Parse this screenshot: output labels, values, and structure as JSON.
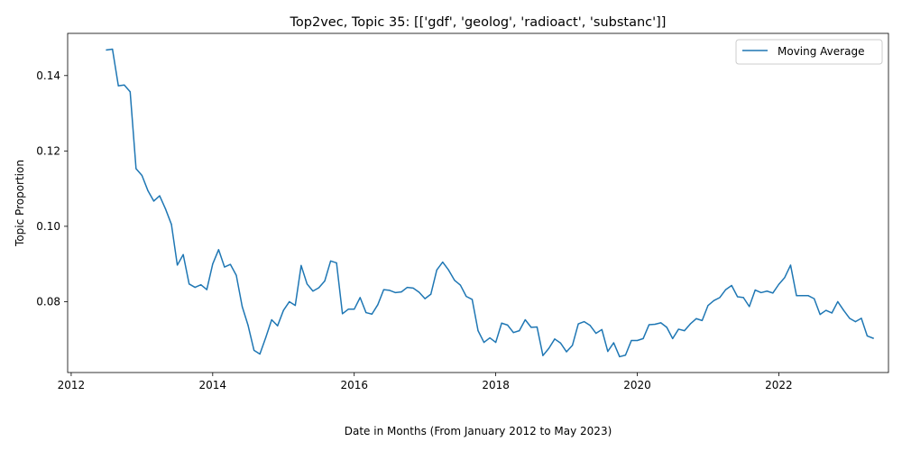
{
  "chart_data": {
    "type": "line",
    "title": "Top2vec, Topic 35: [['gdf', 'geolog', 'radioact', 'substanc']]",
    "xlabel": "Date in Months (From January 2012 to May 2023)",
    "ylabel": "Topic Proportion",
    "xlim": [
      2011.95,
      2023.55
    ],
    "ylim": [
      0.0612,
      0.1512
    ],
    "x_ticks": [
      2012,
      2014,
      2016,
      2018,
      2020,
      2022
    ],
    "y_ticks": [
      0.08,
      0.1,
      0.12,
      0.14
    ],
    "y_tick_labels": [
      "0.08",
      "0.10",
      "0.12",
      "0.14"
    ],
    "grid": false,
    "legend": {
      "position": "top-right",
      "entries": [
        "Moving Average"
      ]
    },
    "series": [
      {
        "name": "Moving Average",
        "color": "#1f77b4",
        "x_start": "2012-07",
        "x_step": "1 month",
        "values": [
          0.1468,
          0.147,
          0.1373,
          0.1375,
          0.1357,
          0.1153,
          0.1135,
          0.1095,
          0.1067,
          0.1081,
          0.1046,
          0.1005,
          0.0897,
          0.0925,
          0.0847,
          0.0838,
          0.0845,
          0.0832,
          0.09,
          0.0938,
          0.0892,
          0.0899,
          0.087,
          0.0787,
          0.0737,
          0.0671,
          0.0661,
          0.0705,
          0.0752,
          0.0736,
          0.0777,
          0.08,
          0.079,
          0.0896,
          0.0847,
          0.0828,
          0.0837,
          0.0855,
          0.0908,
          0.0903,
          0.0768,
          0.078,
          0.078,
          0.0811,
          0.0771,
          0.0767,
          0.0792,
          0.0832,
          0.083,
          0.0824,
          0.0826,
          0.0838,
          0.0836,
          0.0825,
          0.0808,
          0.082,
          0.0884,
          0.0905,
          0.0884,
          0.0857,
          0.0844,
          0.0814,
          0.0806,
          0.0723,
          0.0692,
          0.0704,
          0.0692,
          0.0743,
          0.0738,
          0.0718,
          0.0723,
          0.0752,
          0.0732,
          0.0733,
          0.0657,
          0.0676,
          0.0701,
          0.069,
          0.0667,
          0.0684,
          0.0741,
          0.0747,
          0.0737,
          0.0716,
          0.0726,
          0.0668,
          0.0691,
          0.0654,
          0.0658,
          0.0697,
          0.0697,
          0.0702,
          0.0739,
          0.074,
          0.0744,
          0.0732,
          0.0702,
          0.0727,
          0.0723,
          0.0741,
          0.0755,
          0.075,
          0.079,
          0.0803,
          0.0811,
          0.0832,
          0.0843,
          0.0813,
          0.0811,
          0.0787,
          0.0831,
          0.0824,
          0.0828,
          0.0823,
          0.0846,
          0.0864,
          0.0897,
          0.0816,
          0.0816,
          0.0816,
          0.0808,
          0.0766,
          0.0777,
          0.077,
          0.08,
          0.0777,
          0.0756,
          0.0747,
          0.0756,
          0.0709,
          0.0703
        ]
      }
    ]
  }
}
